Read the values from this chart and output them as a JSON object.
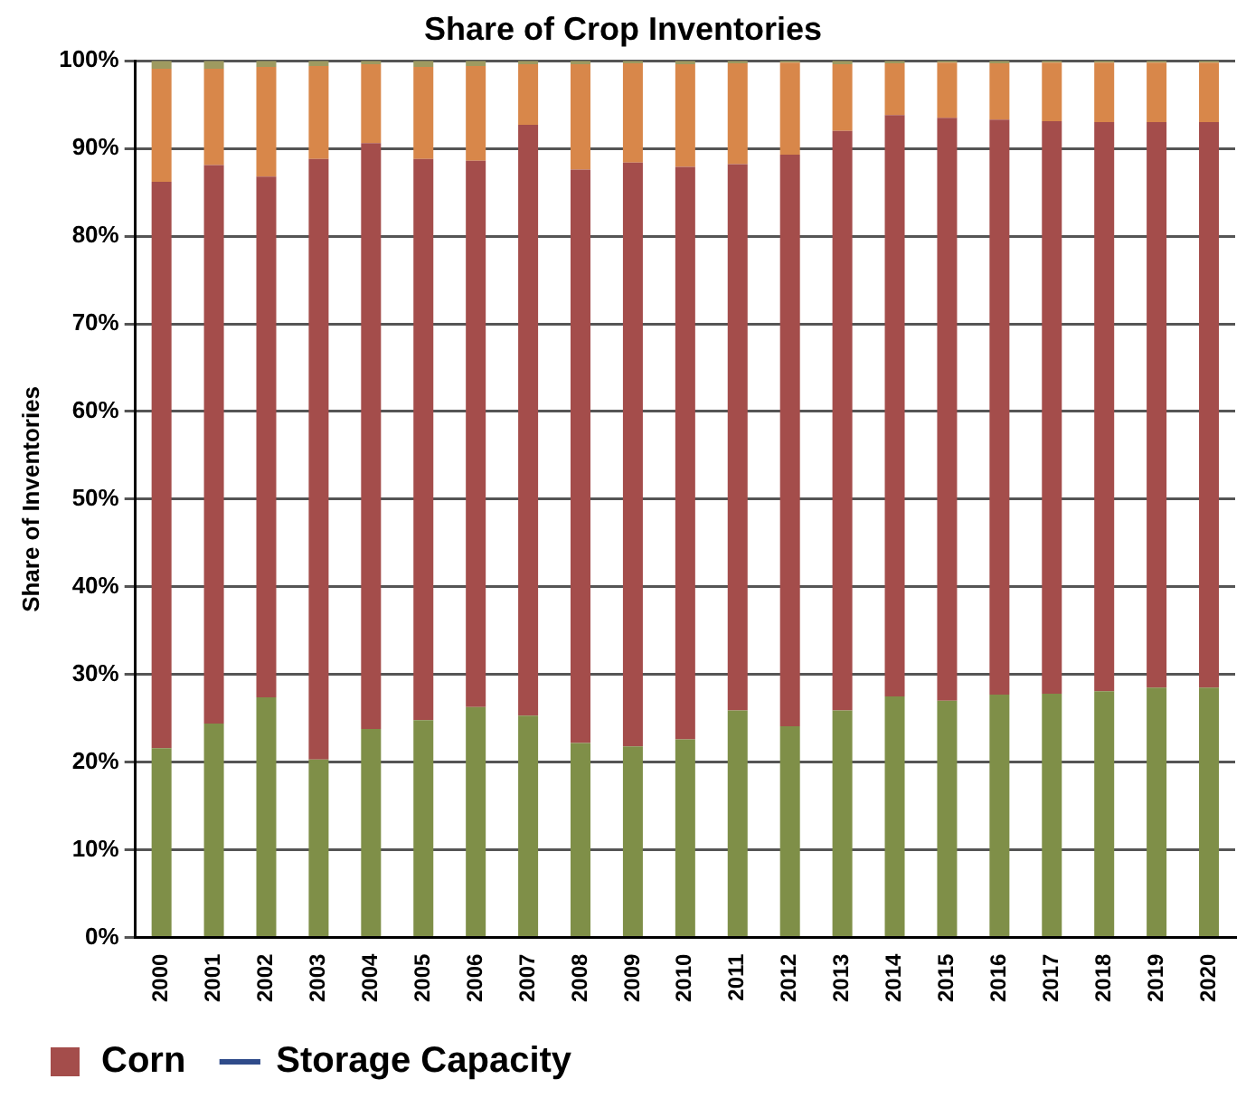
{
  "chart_data": {
    "type": "bar",
    "title": "Share of Crop Inventories",
    "ylabel": "Share of Inventories",
    "stacked": true,
    "grid": "y",
    "legend": "bottom",
    "categories": [
      "2000",
      "2001",
      "2002",
      "2003",
      "2004",
      "2005",
      "2006",
      "2007",
      "2008",
      "2009",
      "2010",
      "2011",
      "2012",
      "2013",
      "2014",
      "2015",
      "2016",
      "2017",
      "2018",
      "2019",
      "2020"
    ],
    "ylim": [
      0,
      100
    ],
    "yticks": [
      {
        "value": 0,
        "label": "0%"
      },
      {
        "value": 10,
        "label": "10%"
      },
      {
        "value": 20,
        "label": "20%"
      },
      {
        "value": 30,
        "label": "30%"
      },
      {
        "value": 40,
        "label": "40%"
      },
      {
        "value": 50,
        "label": "50%"
      },
      {
        "value": 60,
        "label": "60%"
      },
      {
        "value": 70,
        "label": "70%"
      },
      {
        "value": 80,
        "label": "80%"
      },
      {
        "value": 90,
        "label": "90%"
      },
      {
        "value": 100,
        "label": "100%"
      }
    ],
    "series": [
      {
        "color": "#7f8f48",
        "values": [
          21.6,
          24.4,
          27.4,
          20.3,
          23.8,
          24.8,
          26.3,
          25.3,
          22.2,
          21.8,
          22.6,
          25.9,
          24.1,
          25.9,
          27.5,
          27.0,
          27.7,
          27.8,
          28.1,
          28.5,
          28.5
        ]
      },
      {
        "name": "Corn",
        "color": "#a44d4b",
        "values": [
          64.6,
          63.7,
          59.4,
          68.5,
          66.8,
          64.0,
          62.3,
          67.4,
          65.4,
          66.6,
          65.3,
          62.3,
          65.2,
          66.1,
          66.3,
          66.5,
          65.6,
          65.3,
          64.9,
          64.5,
          64.5
        ]
      },
      {
        "color": "#d8874a",
        "values": [
          12.9,
          11.0,
          12.5,
          10.6,
          9.0,
          10.5,
          10.8,
          6.9,
          12.0,
          11.3,
          11.7,
          11.5,
          10.5,
          7.6,
          5.9,
          6.3,
          6.4,
          6.7,
          6.8,
          6.8,
          6.8
        ]
      },
      {
        "color": "#9e9a60",
        "values": [
          0.9,
          0.9,
          0.7,
          0.6,
          0.4,
          0.7,
          0.6,
          0.4,
          0.4,
          0.3,
          0.4,
          0.3,
          0.2,
          0.4,
          0.3,
          0.2,
          0.3,
          0.2,
          0.2,
          0.2,
          0.2
        ]
      },
      {
        "name": "Storage Capacity",
        "type": "line",
        "color": "#2f4b8a",
        "values": [
          null,
          null,
          null,
          null,
          null,
          null,
          null,
          null,
          null,
          null,
          null,
          null,
          null,
          null,
          null,
          null,
          null,
          null,
          null,
          null,
          null
        ]
      }
    ]
  }
}
